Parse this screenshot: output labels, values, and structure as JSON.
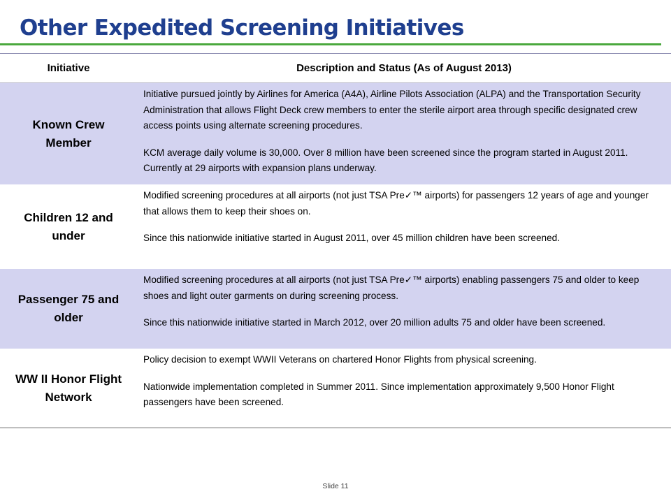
{
  "slide": {
    "title": "Other Expedited Screening Initiatives",
    "footer": "Slide 11"
  },
  "table": {
    "headers": [
      "Initiative",
      "Description and Status (As of August 2013)"
    ],
    "rows": [
      {
        "name": "Known Crew Member",
        "paragraphs": [
          "Initiative pursued jointly by Airlines for America (A4A), Airline Pilots Association (ALPA) and the Transportation Security Administration that allows Flight Deck crew members to enter the sterile airport area through specific designated crew access points using alternate screening procedures.",
          "KCM average daily volume is 30,000. Over 8 million have been screened since the program started in August 2011. Currently at 29 airports with expansion plans underway."
        ]
      },
      {
        "name": "Children 12 and under",
        "paragraphs": [
          "Modified screening procedures at all airports (not just TSA Pre✓™ airports) for passengers 12 years of age and younger that allows them to keep their shoes on.",
          "Since this nationwide initiative started in August 2011, over 45 million children have been screened."
        ]
      },
      {
        "name": "Passenger 75 and older",
        "paragraphs": [
          "Modified screening procedures at all airports (not just TSA Pre✓™ airports) enabling passengers 75 and older to keep shoes and light outer garments on during screening process.",
          "Since this nationwide initiative started in March 2012, over 20 million adults 75 and older have been screened."
        ]
      },
      {
        "name": "WW II Honor Flight Network",
        "paragraphs": [
          "Policy decision to exempt WWII Veterans on chartered Honor Flights from physical screening.",
          "Nationwide implementation completed in Summer 2011. Since implementation approximately 9,500 Honor Flight passengers have been screened."
        ]
      }
    ]
  }
}
